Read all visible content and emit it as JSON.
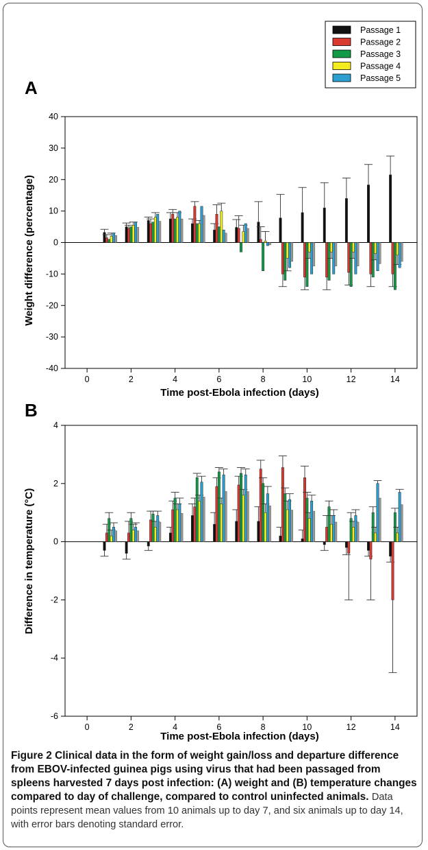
{
  "figure": {
    "caption_label": "Figure 2",
    "caption_title": "Clinical data in the form of weight gain/loss and departure difference from EBOV-infected guinea pigs using virus that had been passaged from spleens harvested 7 days post infection: (A) weight and (B) temperature changes compared to day of challenge, compared to control uninfected animals.",
    "caption_body": "Data points represent mean values from 10 animals up to day 7, and six animals up to day 14, with error bars denoting standard error."
  },
  "legend": {
    "placement": "top-right",
    "entries": [
      "Passage 1",
      "Passage 2",
      "Passage 3",
      "Passage 4",
      "Passage 5"
    ]
  },
  "colors": {
    "Passage 1": "#111111",
    "Passage 2": "#d93a30",
    "Passage 3": "#139a47",
    "Passage 4": "#f4ec1c",
    "Passage 5": "#2a9fd0",
    "extra": "#9a9a9a"
  },
  "chart_data": [
    {
      "type": "bar",
      "panel_label": "A",
      "xlabel": "Time post-Ebola infection (days)",
      "ylabel": "Weight difference (percentage)",
      "xlim": [
        -1,
        15
      ],
      "ylim": [
        -40,
        40
      ],
      "xticks": [
        0,
        2,
        4,
        6,
        8,
        10,
        12,
        14
      ],
      "yticks": [
        -40,
        -30,
        -20,
        -10,
        0,
        10,
        20,
        30,
        40
      ],
      "grid": false,
      "days": [
        1,
        2,
        3,
        4,
        5,
        6,
        7,
        8,
        9,
        10,
        11,
        12,
        13,
        14
      ],
      "series": [
        {
          "name": "Passage 1",
          "values": [
            3.2,
            5,
            7,
            7.5,
            6,
            4,
            4.8,
            6.5,
            7.8,
            9.5,
            11,
            14,
            18.3,
            21.5
          ],
          "errors": [
            1,
            1.2,
            1.1,
            2,
            1.5,
            2,
            2.5,
            6.5,
            7.5,
            8,
            8,
            6.5,
            6.5,
            6
          ]
        },
        {
          "name": "Passage 2",
          "values": [
            1.5,
            4.5,
            6,
            9,
            11.5,
            9,
            4.5,
            1,
            -10,
            -11,
            -11,
            -9.5,
            -10,
            -10
          ],
          "errors": [
            1,
            1,
            1.5,
            1.5,
            1.5,
            3,
            4,
            4,
            4,
            4,
            4,
            4,
            4,
            4
          ]
        },
        {
          "name": "Passage 3",
          "values": [
            1,
            5,
            6.5,
            7.5,
            6,
            5,
            -3,
            -9,
            -12,
            -14,
            -12,
            -14,
            -11,
            -15
          ]
        },
        {
          "name": "Passage 4",
          "values": [
            2,
            5.5,
            8,
            8,
            6,
            10,
            3.5,
            0.5,
            -5,
            -3,
            -3,
            -3,
            -3.5,
            -4
          ],
          "errors": [
            1,
            1,
            1.5,
            1.5,
            1,
            2.5,
            2,
            3,
            4,
            2,
            2,
            2,
            2,
            3
          ]
        },
        {
          "name": "Passage 5",
          "values": [
            3,
            6.5,
            9,
            10,
            11.5,
            4,
            6,
            -1,
            -8,
            -10,
            -10,
            -10,
            -9,
            -8
          ]
        }
      ]
    },
    {
      "type": "bar",
      "panel_label": "B",
      "xlabel": "Time post-Ebola infection (days)",
      "ylabel": "Difference in temperature (°C)",
      "xlim": [
        -1,
        15
      ],
      "ylim": [
        -6,
        4
      ],
      "xticks": [
        0,
        2,
        4,
        6,
        8,
        10,
        12,
        14
      ],
      "yticks": [
        -6,
        -4,
        -2,
        0,
        2,
        4
      ],
      "grid": false,
      "days": [
        1,
        2,
        3,
        4,
        5,
        6,
        7,
        8,
        9,
        10,
        11,
        12,
        13,
        14
      ],
      "series": [
        {
          "name": "Passage 1",
          "values": [
            -0.3,
            -0.4,
            -0.15,
            0.3,
            0.9,
            0.6,
            0.7,
            0.7,
            0.2,
            0.1,
            -0.1,
            -0.2,
            -0.3,
            -0.5
          ],
          "errors": [
            0.2,
            0.2,
            0.15,
            0.2,
            0.4,
            0.4,
            0.4,
            0.5,
            0.3,
            0.3,
            0.2,
            0.25,
            0.2,
            0.2
          ]
        },
        {
          "name": "Passage 2",
          "values": [
            0.3,
            0.3,
            0.75,
            1.1,
            1.2,
            1.9,
            1.95,
            2.5,
            2.55,
            2.2,
            0.5,
            -0.4,
            -0.6,
            -2
          ],
          "errors": [
            0.3,
            0.4,
            0.3,
            0.3,
            0.3,
            0.3,
            0.3,
            0.3,
            0.4,
            0.4,
            0.4,
            1.6,
            1.4,
            2.5
          ]
        },
        {
          "name": "Passage 3",
          "values": [
            0.8,
            0.8,
            0.95,
            1.5,
            2.2,
            2.4,
            2.35,
            2,
            1.65,
            1.5,
            1.2,
            0.8,
            1,
            1
          ],
          "errors": [
            0.2,
            0.2,
            0.1,
            0.2,
            0.15,
            0.15,
            0.2,
            0.2,
            0.2,
            0.2,
            0.2,
            0.2,
            0.2,
            0.15
          ]
        },
        {
          "name": "Passage 4",
          "values": [
            0.2,
            0.4,
            0.5,
            1.1,
            1.4,
            1.3,
            1.6,
            1,
            1.1,
            0.8,
            0.6,
            0.5,
            0.3,
            0.3
          ],
          "errors": [
            0.2,
            0.2,
            0.2,
            0.2,
            0.2,
            0.2,
            0.2,
            0.3,
            0.3,
            0.2,
            0.3,
            0.2,
            0.2,
            0.2
          ]
        },
        {
          "name": "Passage 5",
          "values": [
            0.5,
            0.5,
            0.9,
            1.3,
            2.05,
            2.3,
            2.3,
            1.65,
            1.45,
            1.4,
            0.9,
            0.9,
            2,
            1.7
          ],
          "errors": [
            0.15,
            0.15,
            0.15,
            0.2,
            0.2,
            0.2,
            0.2,
            0.25,
            0.2,
            0.2,
            0.2,
            0.2,
            0.1,
            0.1
          ]
        }
      ]
    }
  ]
}
